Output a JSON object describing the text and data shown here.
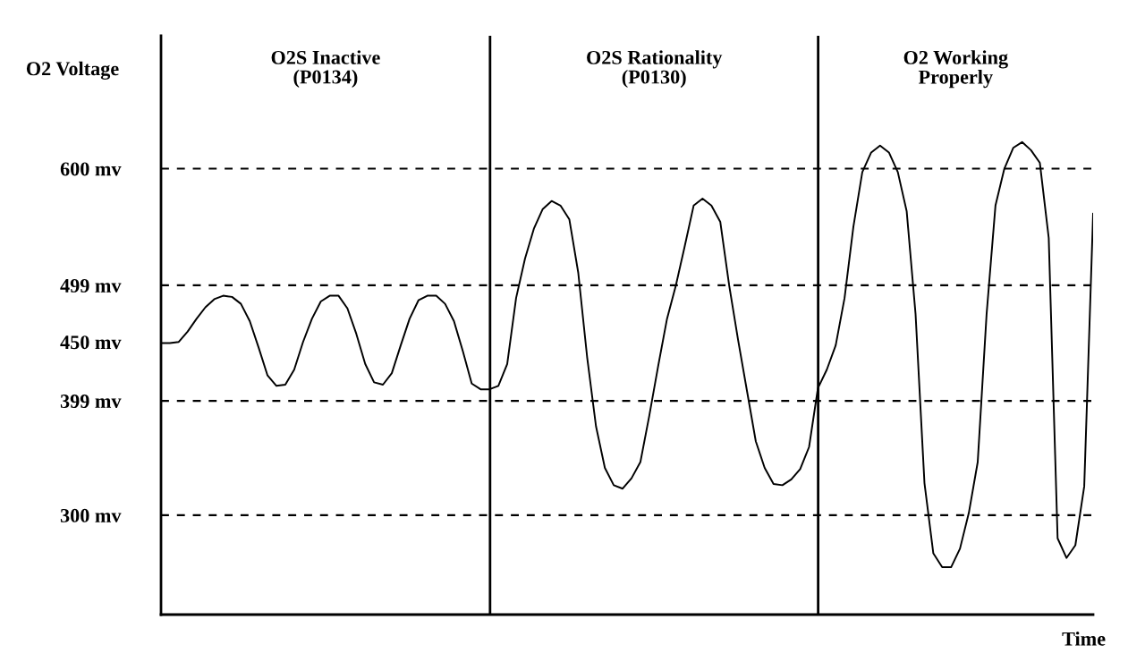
{
  "chart_data": {
    "type": "line",
    "ylabel": "O2 Voltage",
    "xlabel": "Time",
    "categories": [
      null,
      null,
      null,
      null,
      null,
      null,
      null,
      null,
      null,
      null,
      null,
      null,
      null,
      null,
      null,
      null,
      null,
      null,
      null,
      null,
      null,
      null,
      null,
      null,
      null,
      null,
      null,
      null,
      null,
      null,
      null,
      null,
      null,
      null,
      null,
      null,
      null,
      null,
      null,
      null,
      null,
      null,
      null,
      null,
      null,
      null,
      null,
      null,
      null,
      null,
      null,
      null,
      null,
      null,
      null,
      null,
      null,
      null,
      null,
      null,
      null,
      null,
      null,
      null,
      null,
      null,
      null,
      null,
      null,
      null,
      null,
      null,
      null,
      null,
      null,
      null,
      null,
      null,
      null,
      null,
      null,
      null,
      null,
      null,
      null,
      null,
      null,
      null,
      null,
      null,
      null,
      null,
      null,
      null,
      null,
      null,
      null,
      null,
      null,
      null,
      null,
      null,
      null,
      null,
      null,
      null
    ],
    "series": [
      {
        "color": "#000000",
        "values": [
          449,
          449,
          450,
          459,
          470,
          480,
          487,
          490,
          489,
          483,
          468,
          445,
          421,
          412,
          413,
          426,
          450,
          470,
          485,
          490,
          490,
          479,
          457,
          431,
          415,
          413,
          423,
          447,
          470,
          486,
          490,
          490,
          483,
          468,
          442,
          414,
          409,
          409,
          412,
          431,
          488,
          522,
          548,
          565,
          572,
          568,
          556,
          510,
          437,
          377,
          341,
          326,
          323,
          332,
          346,
          386,
          429,
          470,
          499,
          533,
          568,
          574,
          568,
          554,
          499,
          452,
          408,
          364,
          341,
          327,
          326,
          331,
          340,
          359,
          410,
          426,
          447,
          488,
          550,
          597,
          614,
          620,
          614,
          597,
          563,
          474,
          328,
          267,
          255,
          255,
          271,
          302,
          346,
          474,
          568,
          600,
          618,
          623,
          616,
          605,
          540,
          280,
          263,
          274,
          325,
          561
        ]
      }
    ],
    "ylim": [
      214,
      715
    ],
    "yticks": [
      {
        "value": 600,
        "label": "600 mv"
      },
      {
        "value": 499,
        "label": "499 mv"
      },
      {
        "value": 450,
        "label": "450 mv"
      },
      {
        "value": 399,
        "label": "399 mv"
      },
      {
        "value": 300,
        "label": "300 mv"
      }
    ],
    "ref_lines": [
      {
        "axis": "y",
        "value": 600,
        "line_style": "dashed"
      },
      {
        "axis": "y",
        "value": 499,
        "line_style": "dashed"
      },
      {
        "axis": "y",
        "value": 399,
        "line_style": "dashed"
      },
      {
        "axis": "y",
        "value": 300,
        "line_style": "dashed"
      }
    ],
    "annotations": [
      "O2S Inactive\n(P0134)",
      "O2S Rationality\n(P0130)",
      "O2 Working\nProperly"
    ],
    "tick_labels": "y",
    "grid": false,
    "legend": false,
    "marker": "none",
    "line_style": "solid"
  }
}
